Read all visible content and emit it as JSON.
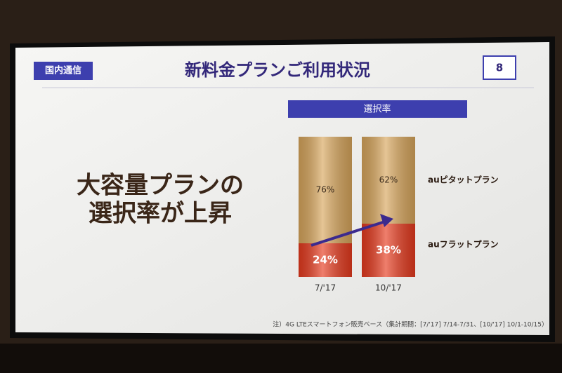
{
  "tag": "国内通信",
  "page_number": "8",
  "headline": [
    "大容量プランの",
    "選択率が上昇"
  ],
  "footnote": "注）4G LTEスマートフォン販売ベース（集計期間：[7/'17] 7/14-7/31、[10/'17] 10/1-10/15）",
  "chart_data": {
    "type": "stacked_bar",
    "title": "新料金プランご利用状況",
    "subtitle": "選択率",
    "categories": [
      "7/'17",
      "10/'17"
    ],
    "series": [
      {
        "name": "auフラットプラン",
        "color": "#e63a1e",
        "values": [
          24,
          38
        ],
        "value_labels": [
          "24%",
          "38%"
        ]
      },
      {
        "name": "auピタットプラン",
        "color": "#d8a65c",
        "values": [
          76,
          62
        ],
        "value_labels": [
          "76%",
          "62%"
        ]
      }
    ]
  }
}
